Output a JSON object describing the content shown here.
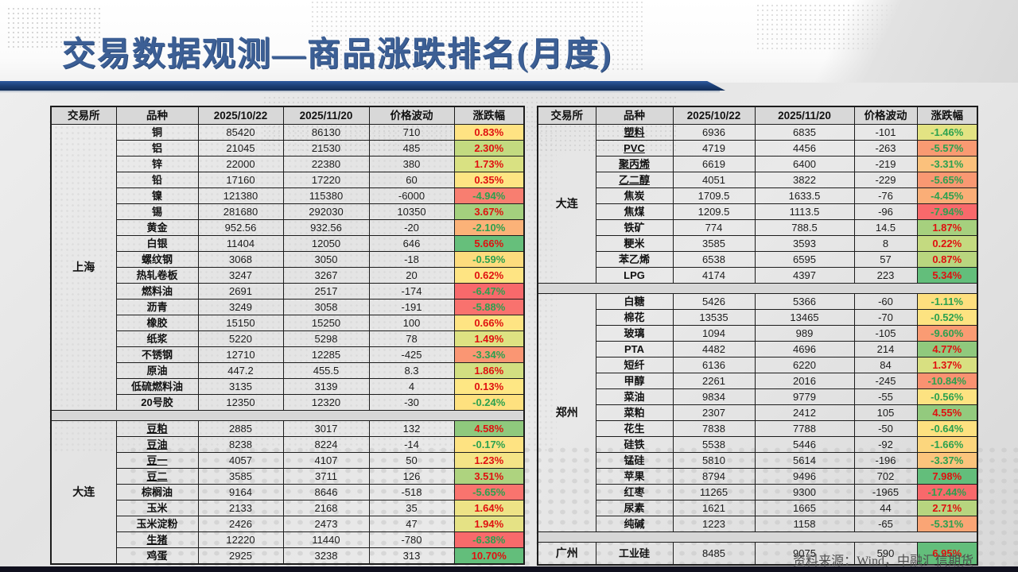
{
  "title": "交易数据观测—商品涨跌排名(月度)",
  "source": "资料来源：Wind，中融汇信期货",
  "text_colors": {
    "positive": "#e01010",
    "negative": "#2ba14f"
  },
  "columns": [
    "交易所",
    "品种",
    "2025/10/22",
    "2025/11/20",
    "价格波动",
    "涨跌幅"
  ],
  "left_table": {
    "sections": [
      {
        "exchange": "上海",
        "rows": [
          {
            "name": "铜",
            "u": false,
            "v1": "85420",
            "v2": "86130",
            "chg": "710",
            "pct": "0.83%",
            "bg": "#FFE383"
          },
          {
            "name": "铝",
            "u": false,
            "v1": "21045",
            "v2": "21530",
            "chg": "485",
            "pct": "2.30%",
            "bg": "#C3DA80"
          },
          {
            "name": "锌",
            "u": false,
            "v1": "22000",
            "v2": "22380",
            "chg": "380",
            "pct": "1.73%",
            "bg": "#D9E182"
          },
          {
            "name": "铅",
            "u": false,
            "v1": "17160",
            "v2": "17220",
            "chg": "60",
            "pct": "0.35%",
            "bg": "#FEE583"
          },
          {
            "name": "镍",
            "u": false,
            "v1": "121380",
            "v2": "115380",
            "chg": "-6000",
            "pct": "-4.94%",
            "bg": "#F87E70"
          },
          {
            "name": "锡",
            "u": false,
            "v1": "281680",
            "v2": "292030",
            "chg": "10350",
            "pct": "3.67%",
            "bg": "#A4D07E"
          },
          {
            "name": "黄金",
            "u": false,
            "v1": "952.56",
            "v2": "932.56",
            "chg": "-20",
            "pct": "-2.10%",
            "bg": "#FBB278"
          },
          {
            "name": "白银",
            "u": false,
            "v1": "11404",
            "v2": "12050",
            "chg": "646",
            "pct": "5.66%",
            "bg": "#66BF7B"
          },
          {
            "name": "螺纹钢",
            "u": false,
            "v1": "3068",
            "v2": "3050",
            "chg": "-18",
            "pct": "-0.59%",
            "bg": "#FDDC7D"
          },
          {
            "name": "热轧卷板",
            "u": false,
            "v1": "3247",
            "v2": "3267",
            "chg": "20",
            "pct": "0.62%",
            "bg": "#FEE483"
          },
          {
            "name": "燃料油",
            "u": false,
            "v1": "2691",
            "v2": "2517",
            "chg": "-174",
            "pct": "-6.47%",
            "bg": "#F8696B"
          },
          {
            "name": "沥青",
            "u": false,
            "v1": "3249",
            "v2": "3058",
            "chg": "-191",
            "pct": "-5.88%",
            "bg": "#F9726E"
          },
          {
            "name": "橡胶",
            "u": false,
            "v1": "15150",
            "v2": "15250",
            "chg": "100",
            "pct": "0.66%",
            "bg": "#FEE483"
          },
          {
            "name": "纸浆",
            "u": false,
            "v1": "5220",
            "v2": "5298",
            "chg": "78",
            "pct": "1.49%",
            "bg": "#DEE282"
          },
          {
            "name": "不锈钢",
            "u": false,
            "v1": "12710",
            "v2": "12285",
            "chg": "-425",
            "pct": "-3.34%",
            "bg": "#FA9673"
          },
          {
            "name": "原油",
            "u": false,
            "v1": "447.2",
            "v2": "455.5",
            "chg": "8.3",
            "pct": "1.86%",
            "bg": "#D2DF81"
          },
          {
            "name": "低硫燃料油",
            "u": false,
            "v1": "3135",
            "v2": "3139",
            "chg": "4",
            "pct": "0.13%",
            "bg": "#FEE784"
          },
          {
            "name": "20号胶",
            "u": false,
            "v1": "12350",
            "v2": "12320",
            "chg": "-30",
            "pct": "-0.24%",
            "bg": "#FEE17F"
          }
        ]
      },
      {
        "exchange": "大连",
        "rows": [
          {
            "name": "豆粕",
            "u": true,
            "v1": "2885",
            "v2": "3017",
            "chg": "132",
            "pct": "4.58%",
            "bg": "#8FC97D"
          },
          {
            "name": "豆油",
            "u": true,
            "v1": "8238",
            "v2": "8224",
            "chg": "-14",
            "pct": "-0.17%",
            "bg": "#FEE382"
          },
          {
            "name": "豆一",
            "u": true,
            "v1": "4057",
            "v2": "4107",
            "chg": "50",
            "pct": "1.23%",
            "bg": "#F4E486"
          },
          {
            "name": "豆二",
            "u": true,
            "v1": "3585",
            "v2": "3711",
            "chg": "126",
            "pct": "3.51%",
            "bg": "#AED37F"
          },
          {
            "name": "棕榈油",
            "u": false,
            "v1": "9164",
            "v2": "8646",
            "chg": "-518",
            "pct": "-5.65%",
            "bg": "#F9746E"
          },
          {
            "name": "玉米",
            "u": false,
            "v1": "2133",
            "v2": "2168",
            "chg": "35",
            "pct": "1.64%",
            "bg": "#EDE386"
          },
          {
            "name": "玉米淀粉",
            "u": false,
            "v1": "2426",
            "v2": "2473",
            "chg": "47",
            "pct": "1.94%",
            "bg": "#E5E285"
          },
          {
            "name": "生猪",
            "u": true,
            "v1": "12220",
            "v2": "11440",
            "chg": "-780",
            "pct": "-6.38%",
            "bg": "#F86A6B"
          },
          {
            "name": "鸡蛋",
            "u": false,
            "v1": "2925",
            "v2": "3238",
            "chg": "313",
            "pct": "10.70%",
            "bg": "#63BE7B"
          }
        ]
      }
    ]
  },
  "right_table": {
    "sections": [
      {
        "exchange": "大连",
        "rows": [
          {
            "name": "塑料",
            "u": true,
            "v1": "6936",
            "v2": "6835",
            "chg": "-101",
            "pct": "-1.46%",
            "bg": "#E3E383"
          },
          {
            "name": "PVC",
            "u": true,
            "v1": "4719",
            "v2": "4456",
            "chg": "-263",
            "pct": "-5.57%",
            "bg": "#F99A72"
          },
          {
            "name": "聚丙烯",
            "u": true,
            "v1": "6619",
            "v2": "6400",
            "chg": "-219",
            "pct": "-3.31%",
            "bg": "#FBC17C"
          },
          {
            "name": "乙二醇",
            "u": true,
            "v1": "4051",
            "v2": "3822",
            "chg": "-229",
            "pct": "-5.65%",
            "bg": "#F99872"
          },
          {
            "name": "焦炭",
            "u": false,
            "v1": "1709.5",
            "v2": "1633.5",
            "chg": "-76",
            "pct": "-4.45%",
            "bg": "#FAAE77"
          },
          {
            "name": "焦煤",
            "u": false,
            "v1": "1209.5",
            "v2": "1113.5",
            "chg": "-96",
            "pct": "-7.94%",
            "bg": "#F8696B"
          },
          {
            "name": "铁矿",
            "u": false,
            "v1": "774",
            "v2": "788.5",
            "chg": "14.5",
            "pct": "1.87%",
            "bg": "#A6D07E"
          },
          {
            "name": "粳米",
            "u": false,
            "v1": "3585",
            "v2": "3593",
            "chg": "8",
            "pct": "0.22%",
            "bg": "#C4DA80"
          },
          {
            "name": "苯乙烯",
            "u": false,
            "v1": "6538",
            "v2": "6595",
            "chg": "57",
            "pct": "0.87%",
            "bg": "#B9D67F"
          },
          {
            "name": "LPG",
            "u": false,
            "v1": "4174",
            "v2": "4397",
            "chg": "223",
            "pct": "5.34%",
            "bg": "#63BE7B"
          }
        ]
      },
      {
        "exchange": "郑州",
        "rows": [
          {
            "name": "白糖",
            "u": false,
            "v1": "5426",
            "v2": "5366",
            "chg": "-60",
            "pct": "-1.11%",
            "bg": "#FEDF7E"
          },
          {
            "name": "棉花",
            "u": false,
            "v1": "13535",
            "v2": "13465",
            "chg": "-70",
            "pct": "-0.52%",
            "bg": "#FDE381"
          },
          {
            "name": "玻璃",
            "u": false,
            "v1": "1094",
            "v2": "989",
            "chg": "-105",
            "pct": "-9.60%",
            "bg": "#FA9B73"
          },
          {
            "name": "PTA",
            "u": false,
            "v1": "4482",
            "v2": "4696",
            "chg": "214",
            "pct": "4.77%",
            "bg": "#90C97D"
          },
          {
            "name": "短纤",
            "u": false,
            "v1": "6136",
            "v2": "6220",
            "chg": "84",
            "pct": "1.37%",
            "bg": "#D8E081"
          },
          {
            "name": "甲醇",
            "u": false,
            "v1": "2261",
            "v2": "2016",
            "chg": "-245",
            "pct": "-10.84%",
            "bg": "#FA9271"
          },
          {
            "name": "菜油",
            "u": false,
            "v1": "9834",
            "v2": "9779",
            "chg": "-55",
            "pct": "-0.56%",
            "bg": "#FDE281"
          },
          {
            "name": "菜粕",
            "u": false,
            "v1": "2307",
            "v2": "2412",
            "chg": "105",
            "pct": "4.55%",
            "bg": "#93CA7E"
          },
          {
            "name": "花生",
            "u": false,
            "v1": "7838",
            "v2": "7788",
            "chg": "-50",
            "pct": "-0.64%",
            "bg": "#FDE180"
          },
          {
            "name": "硅铁",
            "u": false,
            "v1": "5538",
            "v2": "5446",
            "chg": "-92",
            "pct": "-1.66%",
            "bg": "#FCD67D"
          },
          {
            "name": "锰硅",
            "u": false,
            "v1": "5810",
            "v2": "5614",
            "chg": "-196",
            "pct": "-3.37%",
            "bg": "#FBC47C"
          },
          {
            "name": "苹果",
            "u": false,
            "v1": "8794",
            "v2": "9496",
            "chg": "702",
            "pct": "7.98%",
            "bg": "#63BE7B"
          },
          {
            "name": "红枣",
            "u": false,
            "v1": "11265",
            "v2": "9300",
            "chg": "-1965",
            "pct": "-17.44%",
            "bg": "#F8696B"
          },
          {
            "name": "尿素",
            "u": false,
            "v1": "1621",
            "v2": "1665",
            "chg": "44",
            "pct": "2.71%",
            "bg": "#B7D57F"
          },
          {
            "name": "纯碱",
            "u": false,
            "v1": "1223",
            "v2": "1158",
            "chg": "-65",
            "pct": "-5.31%",
            "bg": "#FAA575"
          }
        ]
      },
      {
        "exchange": "广州",
        "rows": [
          {
            "name": "工业硅",
            "u": false,
            "v1": "8485",
            "v2": "9075",
            "chg": "590",
            "pct": "6.95%",
            "bg": "#63BE7B"
          }
        ]
      }
    ]
  }
}
